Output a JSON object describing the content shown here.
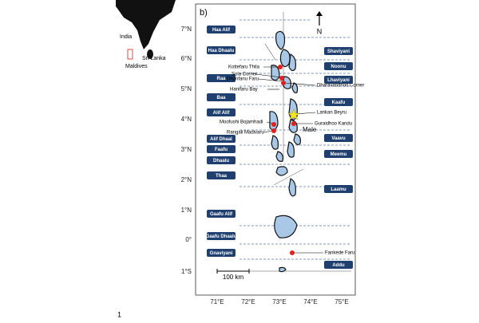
{
  "panel_label": "b)",
  "north": "N",
  "inset": {
    "india": "India",
    "sri_lanka": "Sri Lanka",
    "maldives": "Maldives"
  },
  "lat_labels": [
    "7°N",
    "6°N",
    "5°N",
    "4°N",
    "3°N",
    "2°N",
    "1°N",
    "0°",
    "1°S"
  ],
  "lon_labels": [
    "71°E",
    "72°E",
    "73°E",
    "74°E",
    "75°E"
  ],
  "atolls_left": [
    "Haa Alif",
    "Haa Dhaalu",
    "Raa",
    "Baa",
    "Alif Alif",
    "Alif Dhaal",
    "Faafu",
    "Dhaalu",
    "Thaa",
    "Gaafu Alif",
    "Gaafu Dhaalu",
    "Gnaviyani"
  ],
  "atolls_right": [
    "Shaviyani",
    "Noonu",
    "Lhaviyani",
    "Kaafu",
    "Vaavu",
    "Meemu",
    "Laamu",
    "Addu"
  ],
  "sites": [
    "Kottefaru Thila",
    "Sola Corner",
    "Dhonfanu Faru",
    "Hanifaru Bay",
    "Dharavandhoo Corner",
    "Lankan Beyru",
    "Guraidhoo Kandu",
    "Male",
    "Moofushi Bojamhadi",
    "Rangali Madivaru",
    "Fankede Faru"
  ],
  "scale_bar": "100 km",
  "page_number": "1"
}
